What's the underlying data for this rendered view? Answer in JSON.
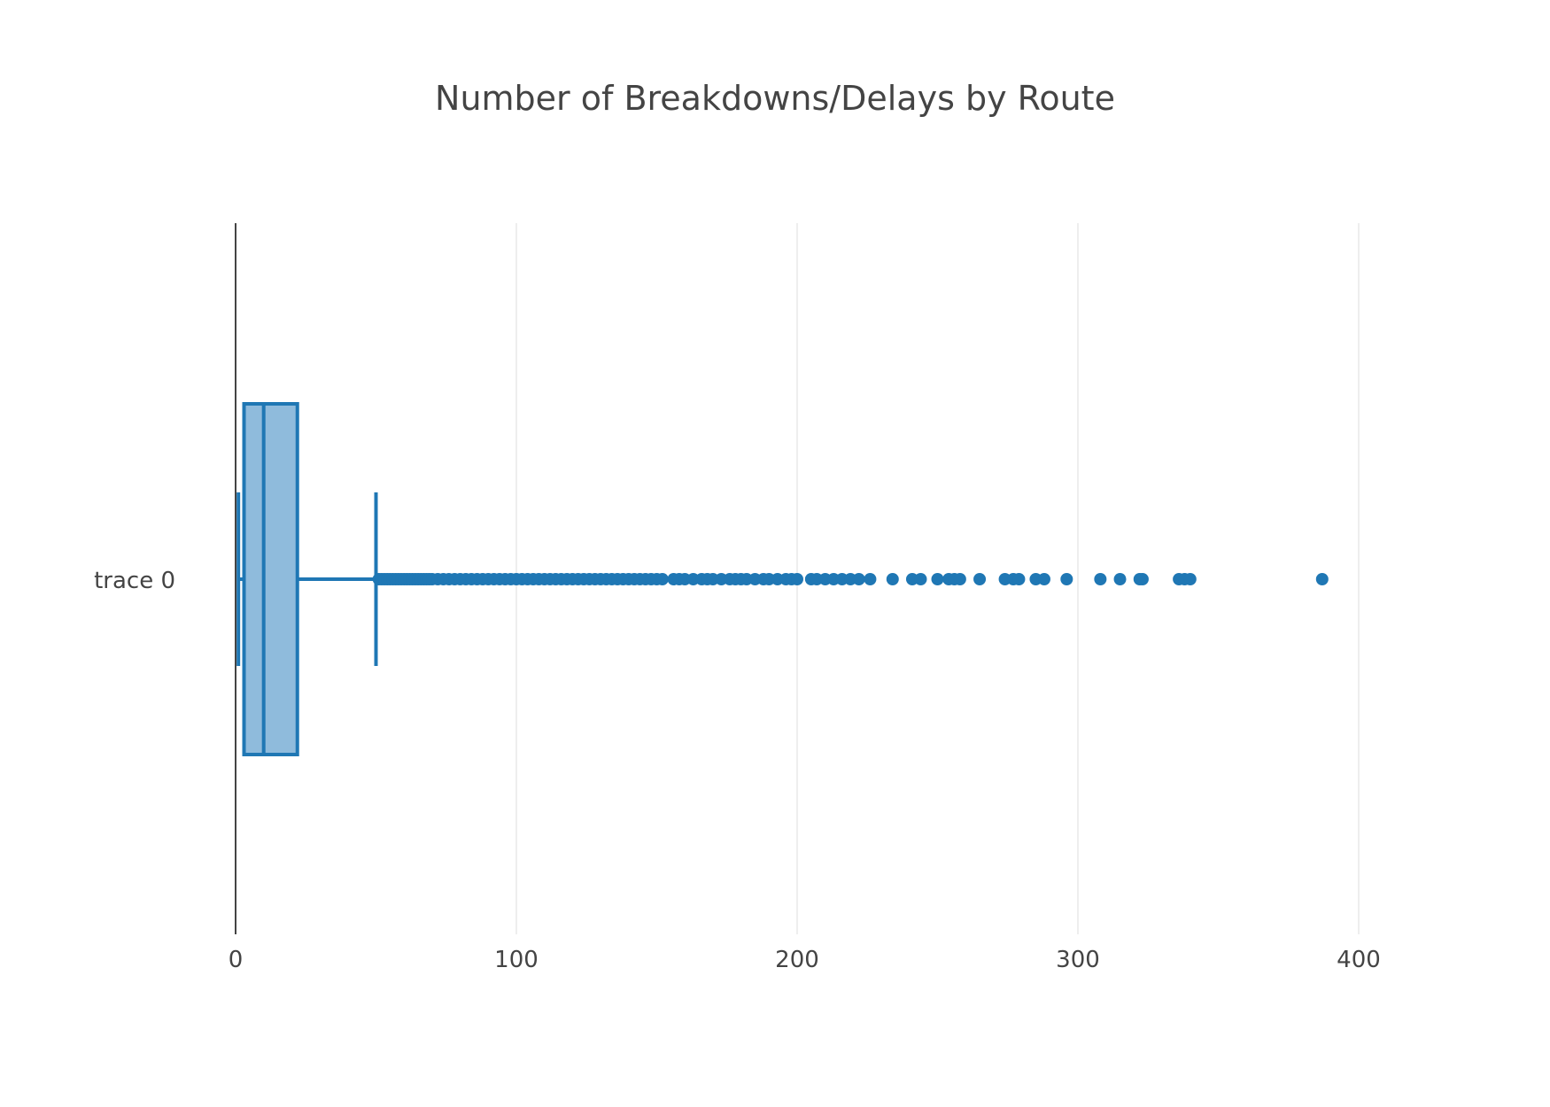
{
  "chart_data": {
    "type": "box",
    "orientation": "horizontal",
    "title": "Number of Breakdowns/Delays by Route",
    "xlabel": "",
    "ylabel": "",
    "xlim": [
      0,
      430
    ],
    "x_ticks": [
      0,
      100,
      200,
      300,
      400
    ],
    "grid": true,
    "colors": {
      "box_line": "#1f77b4",
      "box_fill": "#8fbbdc",
      "outlier": "#1f77b4"
    },
    "series": [
      {
        "name": "trace 0",
        "lower_fence": 1,
        "q1": 3,
        "median": 10,
        "q3": 22,
        "upper_fence": 50,
        "outliers": [
          51,
          52,
          53,
          54,
          55,
          56,
          57,
          58,
          59,
          60,
          61,
          62,
          63,
          64,
          65,
          66,
          67,
          68,
          69,
          70,
          72,
          74,
          76,
          78,
          80,
          82,
          84,
          86,
          88,
          90,
          92,
          94,
          96,
          98,
          100,
          102,
          104,
          106,
          108,
          110,
          112,
          114,
          116,
          118,
          120,
          122,
          124,
          126,
          128,
          130,
          132,
          134,
          136,
          138,
          140,
          142,
          144,
          146,
          148,
          150,
          152,
          156,
          158,
          160,
          163,
          166,
          168,
          170,
          173,
          176,
          178,
          180,
          182,
          185,
          188,
          190,
          193,
          196,
          198,
          200,
          205,
          207,
          210,
          213,
          216,
          219,
          222,
          226,
          234,
          241,
          244,
          250,
          254,
          256,
          258,
          265,
          274,
          277,
          279,
          285,
          288,
          296,
          308,
          315,
          322,
          323,
          336,
          338,
          340,
          387
        ]
      }
    ]
  }
}
